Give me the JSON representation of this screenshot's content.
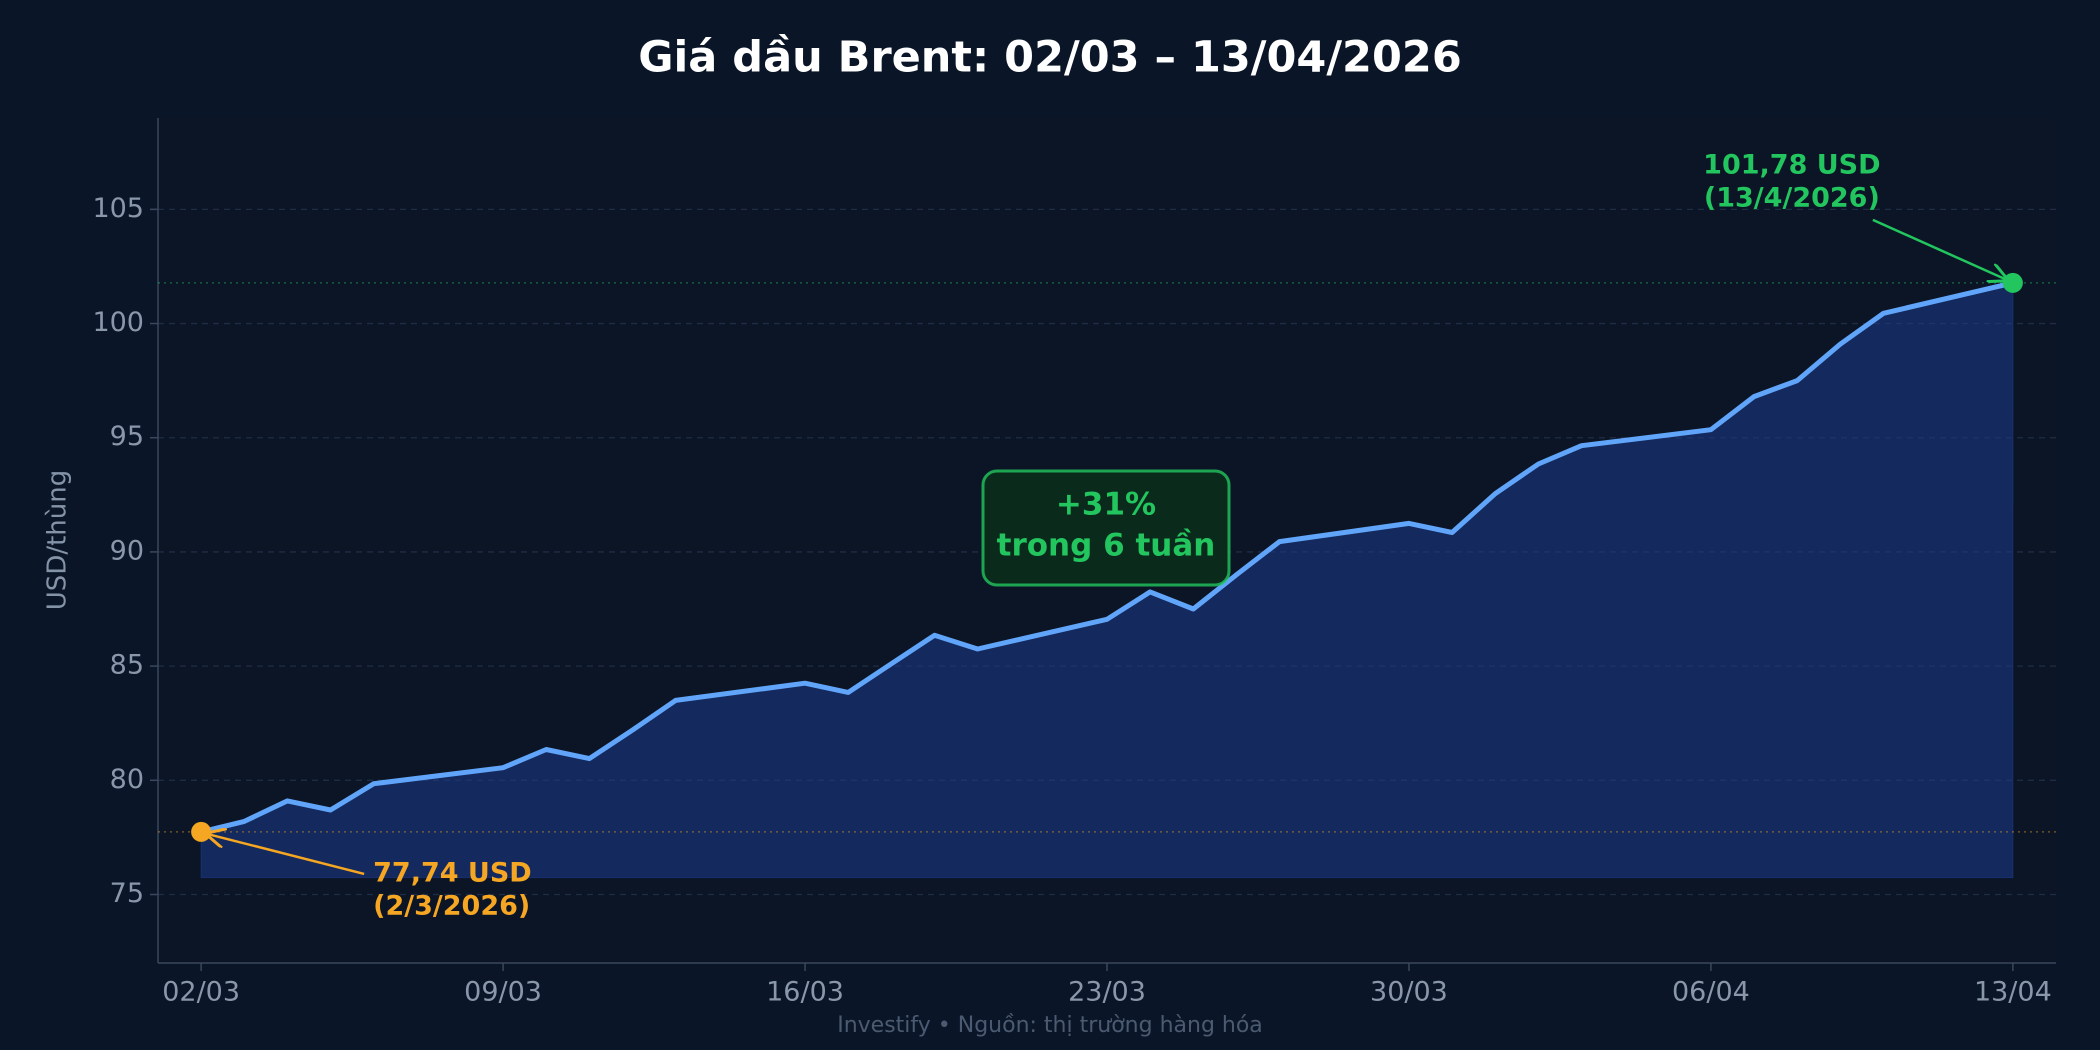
{
  "chart_data": {
    "type": "line",
    "title": "Giá dầu Brent: 02/03 – 13/04/2026",
    "y_label": "USD/thùng",
    "footer": "Investify  •  Nguồn: thị trường hàng hóa",
    "x": [
      "02/03",
      "03/03",
      "04/03",
      "05/03",
      "06/03",
      "09/03",
      "10/03",
      "11/03",
      "12/03",
      "13/03",
      "16/03",
      "17/03",
      "18/03",
      "19/03",
      "20/03",
      "23/03",
      "24/03",
      "25/03",
      "26/03",
      "27/03",
      "30/03",
      "31/03",
      "01/04",
      "02/04",
      "03/04",
      "06/04",
      "07/04",
      "08/04",
      "09/04",
      "10/04",
      "13/04"
    ],
    "values": [
      77.74,
      78.2,
      79.1,
      78.7,
      79.85,
      80.55,
      81.35,
      80.95,
      82.2,
      83.5,
      84.25,
      83.85,
      85.1,
      86.35,
      85.75,
      87.05,
      88.25,
      87.5,
      89.0,
      90.45,
      91.25,
      90.85,
      92.55,
      93.85,
      94.65,
      95.35,
      96.8,
      97.5,
      99.1,
      100.45,
      101.78
    ],
    "color": "#60a5fa",
    "xlim": [
      "01/03",
      "14/04"
    ],
    "xticks": [
      "02/03",
      "09/03",
      "16/03",
      "23/03",
      "30/03",
      "06/04",
      "13/04"
    ],
    "ylim": [
      72,
      109
    ],
    "yticks": [
      75,
      80,
      85,
      90,
      95,
      100,
      105
    ],
    "grid": true,
    "annotations": {
      "start": {
        "lines": [
          "77,74 USD",
          "(2/3/2026)"
        ],
        "color": "#f5a623"
      },
      "end": {
        "lines": [
          "101,78 USD",
          "(13/4/2026)"
        ],
        "color": "#22c55e"
      },
      "change": {
        "lines": [
          "+31%",
          "trong 6 tuần"
        ],
        "color": "#22c55e"
      }
    }
  }
}
